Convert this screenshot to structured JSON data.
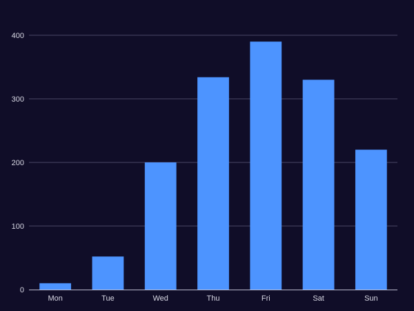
{
  "colors": {
    "background": "#100d28",
    "bar": "#4d94ff",
    "grid": "#4a4866",
    "axis": "#bcbcd0",
    "text": "#d8d8e4"
  },
  "chart_data": {
    "type": "bar",
    "categories": [
      "Mon",
      "Tue",
      "Wed",
      "Thu",
      "Fri",
      "Sat",
      "Sun"
    ],
    "values": [
      10,
      52,
      200,
      334,
      390,
      330,
      220
    ],
    "ylim": [
      0,
      400
    ],
    "yticks": [
      0,
      100,
      200,
      300,
      400
    ],
    "grid": true,
    "title": "",
    "xlabel": "",
    "ylabel": ""
  }
}
